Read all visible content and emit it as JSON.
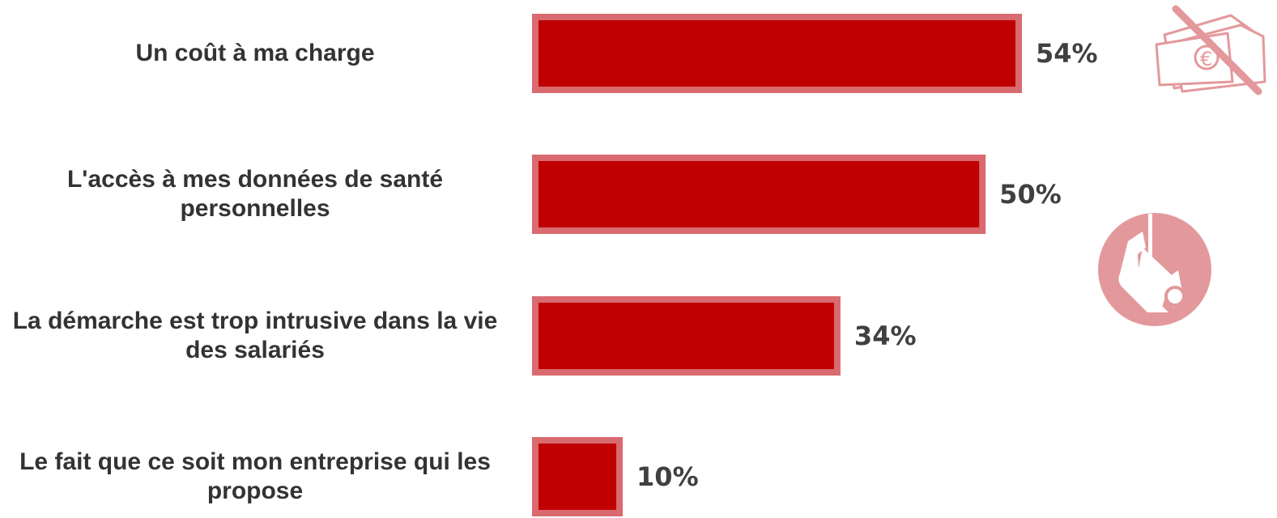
{
  "chart_data": {
    "type": "bar",
    "orientation": "horizontal",
    "categories": [
      "Un coût à ma charge",
      "L'accès à mes données de santé personnelles",
      "La démarche est trop intrusive dans la vie des salariés",
      "Le fait que ce soit mon entreprise qui les propose"
    ],
    "values": [
      54,
      50,
      34,
      10
    ],
    "value_labels": [
      "54%",
      "50%",
      "34%",
      "10%"
    ],
    "unit": "%",
    "title": "",
    "xlabel": "",
    "ylabel": "",
    "xlim": [
      0,
      100
    ],
    "grid": false,
    "legend": "none",
    "colors": {
      "bar_fill": "#c00000",
      "bar_border": "#d96a6f",
      "icon": "#e3999c",
      "label_text": "#333333",
      "value_text": "#404040"
    }
  },
  "icons": [
    "crossed-out-money-icon",
    "security-camera-icon"
  ]
}
